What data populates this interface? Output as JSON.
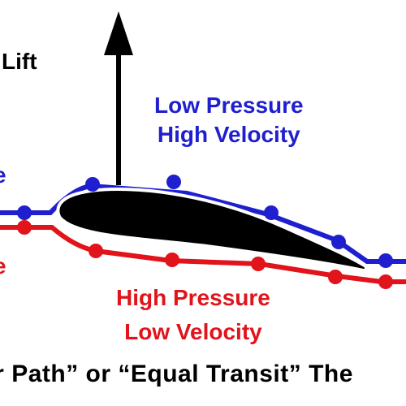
{
  "labels": {
    "lift": "Lift",
    "low_pressure": "Low Pressure",
    "high_velocity": "High Velocity",
    "high_pressure": "High Pressure",
    "low_velocity": "Low Velocity",
    "edge_blue": "e",
    "edge_red": "e",
    "caption": "er Path” or “Equal Transit” The"
  },
  "colors": {
    "upper_stream": "#1f1fd0",
    "lower_stream": "#e0141a",
    "airfoil": "#000000",
    "arrow": "#000000"
  }
}
